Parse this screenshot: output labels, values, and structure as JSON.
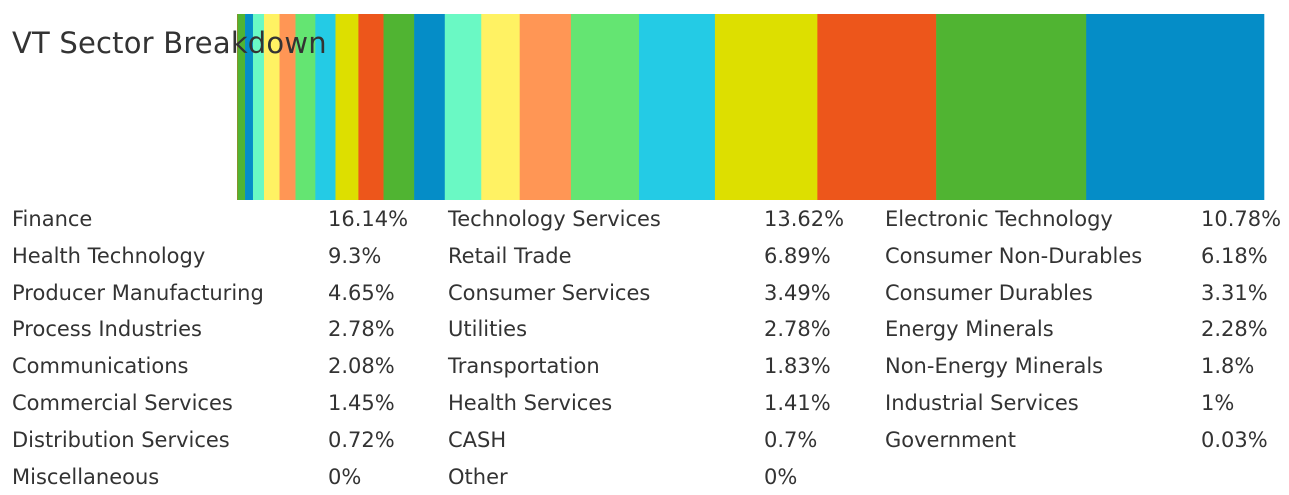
{
  "chart_data": {
    "type": "bar",
    "stacked": true,
    "orientation": "horizontal",
    "title": "VT Sector Breakdown",
    "categories": [
      "Finance",
      "Technology Services",
      "Electronic Technology",
      "Health Technology",
      "Retail Trade",
      "Consumer Non-Durables",
      "Producer Manufacturing",
      "Consumer Services",
      "Consumer Durables",
      "Process Industries",
      "Utilities",
      "Energy Minerals",
      "Communications",
      "Transportation",
      "Non-Energy Minerals",
      "Commercial Services",
      "Health Services",
      "Industrial Services",
      "Distribution Services",
      "CASH",
      "Government",
      "Miscellaneous",
      "Other"
    ],
    "values": [
      16.14,
      13.62,
      10.78,
      9.3,
      6.89,
      6.18,
      4.65,
      3.49,
      3.31,
      2.78,
      2.78,
      2.28,
      2.08,
      1.83,
      1.8,
      1.45,
      1.41,
      1,
      0.72,
      0.7,
      0.03,
      0,
      0
    ],
    "value_labels": [
      "16.14%",
      "13.62%",
      "10.78%",
      "9.3%",
      "6.89%",
      "6.18%",
      "4.65%",
      "3.49%",
      "3.31%",
      "2.78%",
      "2.78%",
      "2.28%",
      "2.08%",
      "1.83%",
      "1.8%",
      "1.45%",
      "1.41%",
      "1%",
      "0.72%",
      "0.7%",
      "0.03%",
      "0%",
      "0%"
    ],
    "colors": [
      "#058dc7",
      "#50b432",
      "#ed561b",
      "#dddf00",
      "#24cbe5",
      "#64e572",
      "#ff9655",
      "#fff263",
      "#6af9c4",
      "#058dc7",
      "#50b432",
      "#ed561b",
      "#dddf00",
      "#24cbe5",
      "#64e572",
      "#ff9655",
      "#fff263",
      "#6af9c4",
      "#058dc7",
      "#50b432",
      "#ed561b",
      "#dddf00",
      "#24cbe5"
    ],
    "legend_position": "bottom",
    "legend_columns": 3,
    "grid": false
  }
}
